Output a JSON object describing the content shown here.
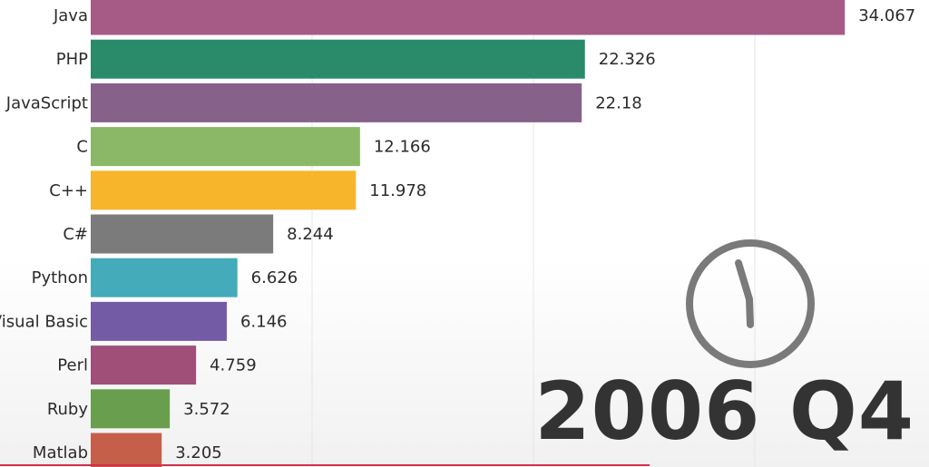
{
  "chart_data": {
    "type": "bar",
    "orientation": "horizontal",
    "categories": [
      "Java",
      "PHP",
      "JavaScript",
      "C",
      "C++",
      "C#",
      "Python",
      "Visual Basic",
      "Perl",
      "Ruby",
      "Matlab"
    ],
    "values": [
      34.067,
      22.326,
      22.18,
      12.166,
      11.978,
      8.244,
      6.626,
      6.146,
      4.759,
      3.572,
      3.205
    ],
    "value_labels": [
      "34.067",
      "22.326",
      "22.18",
      "12.166",
      "11.978",
      "8.244",
      "6.626",
      "6.146",
      "4.759",
      "3.572",
      "3.205"
    ],
    "colors": [
      "#a65a86",
      "#2a8b6b",
      "#86618a",
      "#8bb866",
      "#f7b52b",
      "#7b7b7b",
      "#43abb9",
      "#745ba6",
      "#a04f79",
      "#6a9e4f",
      "#c55f4a"
    ],
    "gridlines": [
      10,
      20,
      30
    ],
    "grid": true,
    "title": "",
    "xlabel": "",
    "ylabel": "",
    "period": "2006 Q4"
  },
  "clock": {
    "icon": "clock-icon",
    "color": "#7a7a7a"
  },
  "accent_rule_color": "#d1304b"
}
